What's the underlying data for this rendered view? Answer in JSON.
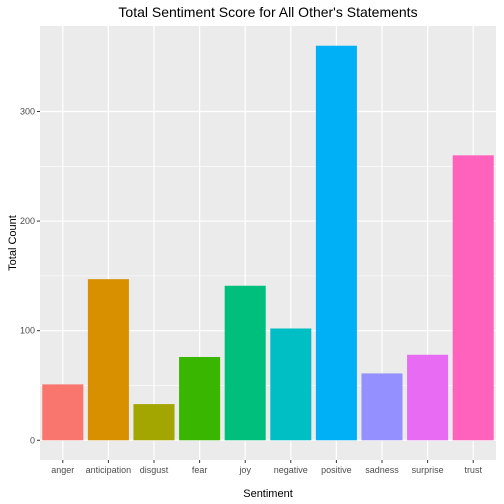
{
  "chart_data": {
    "type": "bar",
    "title": "Total Sentiment Score for All Other's Statements",
    "xlabel": "Sentiment",
    "ylabel": "Total Count",
    "categories": [
      "anger",
      "anticipation",
      "disgust",
      "fear",
      "joy",
      "negative",
      "positive",
      "sadness",
      "surprise",
      "trust"
    ],
    "values": [
      51,
      147,
      33,
      76,
      141,
      102,
      360,
      61,
      78,
      260
    ],
    "colors": [
      "#F8766D",
      "#D89000",
      "#A3A500",
      "#39B600",
      "#00BF7D",
      "#00BFC4",
      "#00B0F6",
      "#9590FF",
      "#E76BF3",
      "#FF62BC"
    ],
    "ylim": [
      -18,
      378
    ],
    "yticks": [
      0,
      100,
      200,
      300
    ],
    "grid": true,
    "panel_background": "#EBEBEB",
    "grid_color": "#FFFFFF",
    "legend": "none"
  }
}
